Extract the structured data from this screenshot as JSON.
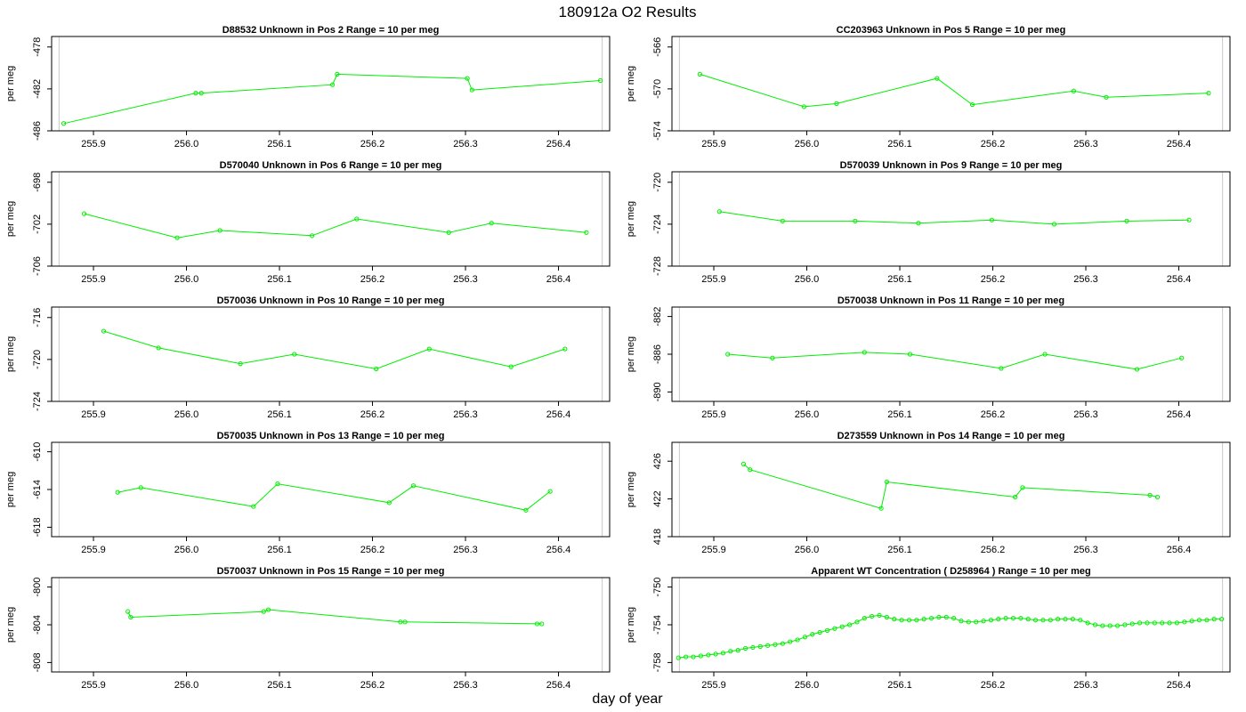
{
  "title": "180912a  O2 Results",
  "xlabel": "day of year",
  "colors": {
    "series": "#00ee00",
    "ref": "#c8c8c8"
  },
  "chart_data": [
    {
      "type": "line",
      "title": "D88532    Unknown in Pos 2          Range = 10 per meg",
      "ylabel": "per meg",
      "xlim": [
        255.855,
        256.455
      ],
      "ylim": [
        -486,
        -477
      ],
      "yticks": [
        -478,
        -482,
        -486
      ],
      "xticks": [
        255.9,
        256.0,
        256.1,
        256.2,
        256.3,
        256.4
      ],
      "ref_lines": [
        255.863,
        256.447
      ],
      "x": [
        255.868,
        256.01,
        256.016,
        256.157,
        256.162,
        256.302,
        256.307,
        256.445
      ],
      "y": [
        -485.3,
        -482.4,
        -482.4,
        -481.6,
        -480.6,
        -481.0,
        -482.1,
        -481.2
      ]
    },
    {
      "type": "line",
      "title": "CC203963    Unknown in Pos 5          Range = 10 per meg",
      "ylabel": "per meg",
      "xlim": [
        255.855,
        256.455
      ],
      "ylim": [
        -574,
        -565
      ],
      "yticks": [
        -566,
        -570,
        -574
      ],
      "xticks": [
        255.9,
        256.0,
        256.1,
        256.2,
        256.3,
        256.4
      ],
      "ref_lines": [
        255.863,
        256.447
      ],
      "x": [
        255.885,
        255.997,
        256.032,
        256.14,
        256.178,
        256.287,
        256.322,
        256.432
      ],
      "y": [
        -568.6,
        -571.7,
        -571.4,
        -569.0,
        -571.5,
        -570.2,
        -570.8,
        -570.4
      ]
    },
    {
      "type": "line",
      "title": "D570040    Unknown in Pos 6          Range = 10 per meg",
      "ylabel": "per meg",
      "xlim": [
        255.855,
        256.455
      ],
      "ylim": [
        -706,
        -697
      ],
      "yticks": [
        -698,
        -702,
        -706
      ],
      "xticks": [
        255.9,
        256.0,
        256.1,
        256.2,
        256.3,
        256.4
      ],
      "ref_lines": [
        255.863,
        256.447
      ],
      "x": [
        255.89,
        255.99,
        256.036,
        256.135,
        256.183,
        256.282,
        256.328,
        256.43
      ],
      "y": [
        -701.0,
        -703.3,
        -702.6,
        -703.1,
        -701.5,
        -702.8,
        -701.9,
        -702.8
      ]
    },
    {
      "type": "line",
      "title": "D570039    Unknown in Pos 9          Range = 10 per meg",
      "ylabel": "per meg",
      "xlim": [
        255.855,
        256.455
      ],
      "ylim": [
        -728,
        -719
      ],
      "yticks": [
        -720,
        -724,
        -728
      ],
      "xticks": [
        255.9,
        256.0,
        256.1,
        256.2,
        256.3,
        256.4
      ],
      "ref_lines": [
        255.863,
        256.447
      ],
      "x": [
        255.906,
        255.974,
        256.052,
        256.12,
        256.199,
        256.266,
        256.344,
        256.411
      ],
      "y": [
        -722.8,
        -723.7,
        -723.7,
        -723.9,
        -723.6,
        -724.0,
        -723.7,
        -723.6
      ]
    },
    {
      "type": "line",
      "title": "D570036    Unknown in Pos 10          Range = 10 per meg",
      "ylabel": "per meg",
      "xlim": [
        255.855,
        256.455
      ],
      "ylim": [
        -724,
        -715
      ],
      "yticks": [
        -716,
        -720,
        -724
      ],
      "xticks": [
        255.9,
        256.0,
        256.1,
        256.2,
        256.3,
        256.4
      ],
      "ref_lines": [
        255.863,
        256.447
      ],
      "x": [
        255.911,
        255.97,
        256.058,
        256.116,
        256.204,
        256.261,
        256.349,
        256.407
      ],
      "y": [
        -717.3,
        -718.9,
        -720.4,
        -719.5,
        -720.9,
        -719.0,
        -720.7,
        -719.0
      ]
    },
    {
      "type": "line",
      "title": "D570038    Unknown in Pos 11          Range = 10 per meg",
      "ylabel": "per meg",
      "xlim": [
        255.855,
        256.455
      ],
      "ylim": [
        -891,
        -881
      ],
      "yticks": [
        -882,
        -886,
        -890
      ],
      "xticks": [
        255.9,
        256.0,
        256.1,
        256.2,
        256.3,
        256.4
      ],
      "ref_lines": [
        255.863,
        256.447
      ],
      "x": [
        255.915,
        255.963,
        256.062,
        256.111,
        256.209,
        256.256,
        256.355,
        256.403
      ],
      "y": [
        -886.0,
        -886.4,
        -885.8,
        -886.0,
        -887.5,
        -886.0,
        -887.6,
        -886.4
      ]
    },
    {
      "type": "line",
      "title": "D570035    Unknown in Pos 13          Range = 10 per meg",
      "ylabel": "per meg",
      "xlim": [
        255.855,
        256.455
      ],
      "ylim": [
        -619,
        -609
      ],
      "yticks": [
        -610,
        -614,
        -618
      ],
      "xticks": [
        255.9,
        256.0,
        256.1,
        256.2,
        256.3,
        256.4
      ],
      "ref_lines": [
        255.863,
        256.447
      ],
      "x": [
        255.926,
        255.951,
        256.072,
        256.098,
        256.218,
        256.244,
        256.365,
        256.391
      ],
      "y": [
        -614.3,
        -613.8,
        -615.8,
        -613.4,
        -615.4,
        -613.6,
        -616.2,
        -614.2
      ]
    },
    {
      "type": "line",
      "title": "D273559    Unknown in Pos 14          Range = 10 per meg",
      "ylabel": "per meg",
      "xlim": [
        255.855,
        256.455
      ],
      "ylim": [
        418,
        428
      ],
      "yticks": [
        418,
        422,
        426
      ],
      "xticks": [
        255.9,
        256.0,
        256.1,
        256.2,
        256.3,
        256.4
      ],
      "ref_lines": [
        255.863,
        256.447
      ],
      "x": [
        255.932,
        255.939,
        256.08,
        256.086,
        256.224,
        256.232,
        256.369,
        256.377
      ],
      "y": [
        425.7,
        425.1,
        421.0,
        423.8,
        422.2,
        423.2,
        422.4,
        422.2
      ]
    },
    {
      "type": "line",
      "title": "D570037    Unknown in Pos 15          Range = 10 per meg",
      "ylabel": "per meg",
      "xlim": [
        255.855,
        256.455
      ],
      "ylim": [
        -809,
        -799
      ],
      "yticks": [
        -800,
        -804,
        -808
      ],
      "xticks": [
        255.9,
        256.0,
        256.1,
        256.2,
        256.3,
        256.4
      ],
      "ref_lines": [
        255.863,
        256.447
      ],
      "x": [
        255.937,
        255.94,
        256.083,
        256.088,
        256.23,
        256.235,
        256.377,
        256.382
      ],
      "y": [
        -802.6,
        -803.2,
        -802.6,
        -802.4,
        -803.7,
        -803.7,
        -803.9,
        -803.9
      ]
    },
    {
      "type": "line",
      "title": "Apparent WT Concentration ( D258964 )          Range = 10 per meg",
      "ylabel": "per meg",
      "xlim": [
        255.855,
        256.455
      ],
      "ylim": [
        -759,
        -749
      ],
      "yticks": [
        -750,
        -754,
        -758
      ],
      "xticks": [
        255.9,
        256.0,
        256.1,
        256.2,
        256.3,
        256.4
      ],
      "ref_lines": [
        255.863,
        256.447
      ],
      "x": [
        255.862,
        255.87,
        255.878,
        255.886,
        255.894,
        255.902,
        255.91,
        255.918,
        255.926,
        255.934,
        255.942,
        255.95,
        255.958,
        255.966,
        255.974,
        255.982,
        255.99,
        255.998,
        256.006,
        256.014,
        256.022,
        256.03,
        256.038,
        256.046,
        256.054,
        256.062,
        256.07,
        256.078,
        256.086,
        256.094,
        256.102,
        256.11,
        256.118,
        256.126,
        256.134,
        256.142,
        256.15,
        256.158,
        256.166,
        256.174,
        256.182,
        256.19,
        256.198,
        256.206,
        256.214,
        256.222,
        256.23,
        256.238,
        256.246,
        256.254,
        256.262,
        256.27,
        256.278,
        256.286,
        256.294,
        256.302,
        256.31,
        256.318,
        256.326,
        256.334,
        256.342,
        256.35,
        256.358,
        256.366,
        256.374,
        256.382,
        256.39,
        256.398,
        256.406,
        256.414,
        256.422,
        256.43,
        256.438,
        256.446
      ],
      "y": [
        -757.5,
        -757.4,
        -757.4,
        -757.3,
        -757.2,
        -757.1,
        -757.0,
        -756.8,
        -756.7,
        -756.5,
        -756.4,
        -756.3,
        -756.2,
        -756.1,
        -756.0,
        -755.8,
        -755.6,
        -755.3,
        -755.0,
        -754.8,
        -754.6,
        -754.4,
        -754.2,
        -754.0,
        -753.7,
        -753.3,
        -753.1,
        -753.0,
        -753.2,
        -753.4,
        -753.5,
        -753.5,
        -753.5,
        -753.4,
        -753.3,
        -753.2,
        -753.2,
        -753.3,
        -753.6,
        -753.7,
        -753.7,
        -753.6,
        -753.5,
        -753.4,
        -753.3,
        -753.3,
        -753.3,
        -753.4,
        -753.5,
        -753.5,
        -753.5,
        -753.4,
        -753.4,
        -753.4,
        -753.5,
        -753.8,
        -754.0,
        -754.1,
        -754.1,
        -754.1,
        -754.0,
        -753.9,
        -753.8,
        -753.8,
        -753.8,
        -753.8,
        -753.8,
        -753.8,
        -753.7,
        -753.6,
        -753.5,
        -753.5,
        -753.4,
        -753.4
      ]
    }
  ]
}
